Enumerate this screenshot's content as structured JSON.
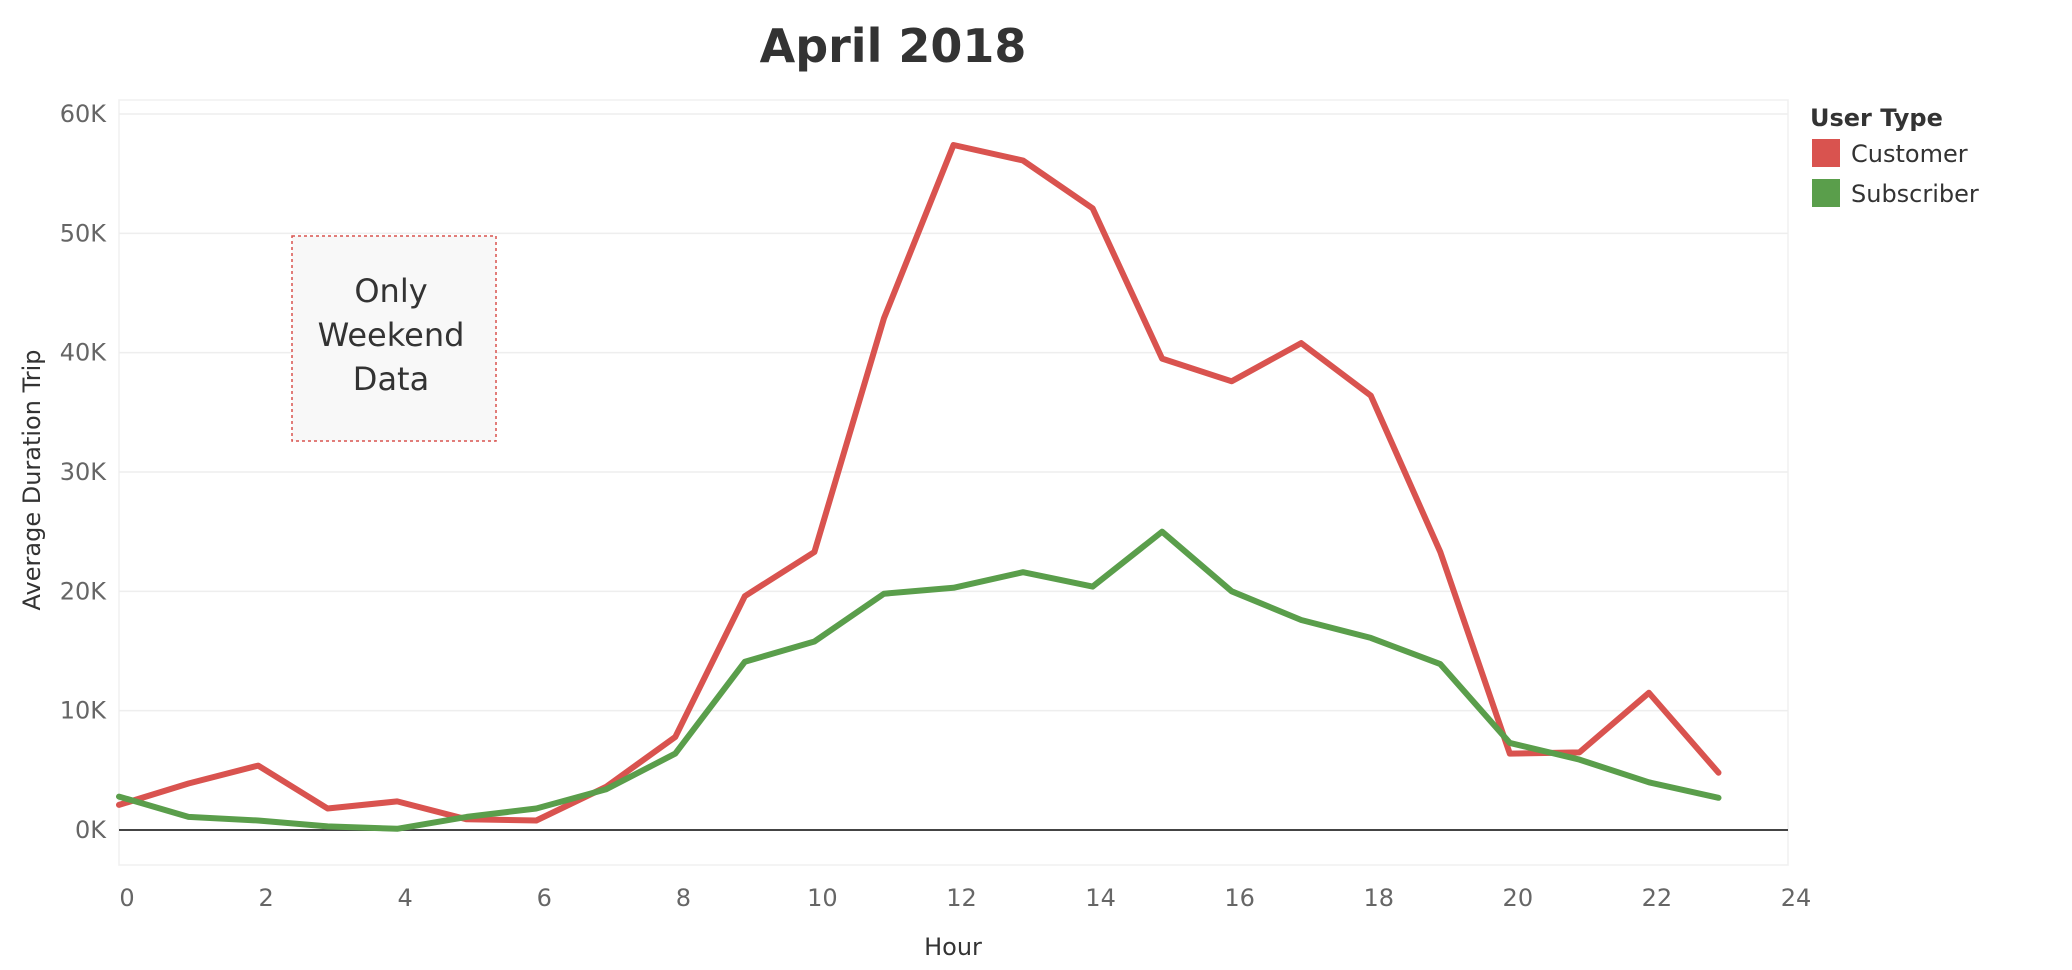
{
  "chart_data": {
    "type": "line",
    "title": "April 2018",
    "xlabel": "Hour",
    "ylabel": "Average Duration Trip",
    "xlim": [
      0,
      24
    ],
    "ylim": [
      -3000,
      60000
    ],
    "x_ticks": [
      0,
      2,
      4,
      6,
      8,
      10,
      12,
      14,
      16,
      18,
      20,
      22,
      24
    ],
    "y_ticks": [
      0,
      10000,
      20000,
      30000,
      40000,
      50000,
      60000
    ],
    "y_tick_labels": [
      "0K",
      "10K",
      "20K",
      "30K",
      "40K",
      "50K",
      "60K"
    ],
    "x": [
      0,
      1,
      2,
      3,
      4,
      5,
      6,
      7,
      8,
      9,
      10,
      11,
      12,
      13,
      14,
      15,
      16,
      17,
      18,
      19,
      20,
      21,
      22,
      23
    ],
    "series": [
      {
        "name": "Customer",
        "color": "#d9534f",
        "values": [
          2100,
          3900,
          5400,
          1800,
          2400,
          900,
          800,
          3600,
          7800,
          19600,
          23300,
          42900,
          57400,
          56100,
          52100,
          39500,
          37600,
          40800,
          36400,
          23300,
          6400,
          6500,
          11500,
          4800
        ]
      },
      {
        "name": "Subscriber",
        "color": "#5a9e4b",
        "values": [
          2800,
          1100,
          800,
          300,
          100,
          1100,
          1800,
          3400,
          6400,
          14100,
          15800,
          19800,
          20300,
          21600,
          20400,
          25000,
          20000,
          17600,
          16100,
          13900,
          7300,
          5900,
          4000,
          2700
        ]
      }
    ],
    "grid": true,
    "legend": {
      "title": "User Type",
      "placement": "right"
    },
    "annotation": {
      "lines": [
        "Only",
        "Weekend",
        "Data"
      ]
    }
  }
}
